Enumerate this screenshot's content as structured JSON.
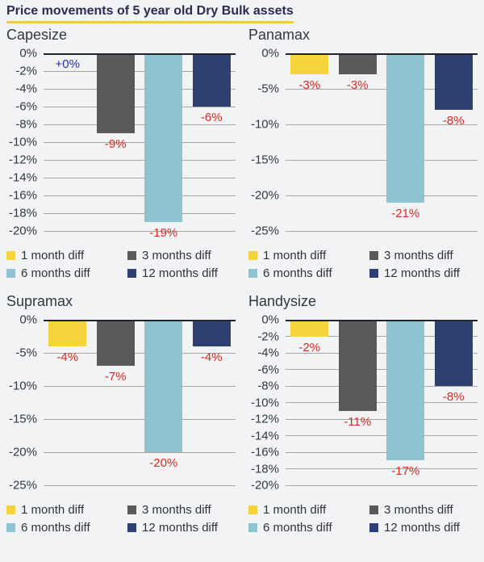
{
  "page": {
    "title": "Price movements of 5 year old Dry Bulk assets"
  },
  "series": [
    {
      "name": "1 month diff",
      "color": "#F5D33C"
    },
    {
      "name": "3 months diff",
      "color": "#595959"
    },
    {
      "name": "6 months diff",
      "color": "#8FC3D1"
    },
    {
      "name": "12 months diff",
      "color": "#2D4070"
    }
  ],
  "colors": {
    "background": "#F2F3F5",
    "title": "#282C55",
    "title_underline": "#F2C94C",
    "chart_title": "#33383F",
    "tick_label": "#33383F",
    "grid": "#A6A6A6",
    "zero_line": "#20242E",
    "negative_label": "#DE2A20",
    "positive_label": "#2B2BB8"
  },
  "chart_data": [
    {
      "type": "bar",
      "title": "Capesize",
      "categories": [
        "1 month diff",
        "3 months diff",
        "6 months diff",
        "12 months diff"
      ],
      "values": [
        0,
        -9,
        -19,
        -6
      ],
      "value_labels": [
        "+0%",
        "-9%",
        "-19%",
        "-6%"
      ],
      "ylim": [
        -20,
        0
      ],
      "yticks": [
        "0%",
        "-2%",
        "-4%",
        "-6%",
        "-8%",
        "-10%",
        "-12%",
        "-14%",
        "-16%",
        "-18%",
        "-20%"
      ],
      "grid": true,
      "legend_position": "bottom"
    },
    {
      "type": "bar",
      "title": "Panamax",
      "categories": [
        "1 month diff",
        "3 months diff",
        "6 months diff",
        "12 months diff"
      ],
      "values": [
        -3,
        -3,
        -21,
        -8
      ],
      "value_labels": [
        "-3%",
        "-3%",
        "-21%",
        "-8%"
      ],
      "ylim": [
        -25,
        0
      ],
      "yticks": [
        "0%",
        "-5%",
        "-10%",
        "-15%",
        "-20%",
        "-25%"
      ],
      "grid": true,
      "legend_position": "bottom"
    },
    {
      "type": "bar",
      "title": "Supramax",
      "categories": [
        "1 month diff",
        "3 months diff",
        "6 months diff",
        "12 months diff"
      ],
      "values": [
        -4,
        -7,
        -20,
        -4
      ],
      "value_labels": [
        "-4%",
        "-7%",
        "-20%",
        "-4%"
      ],
      "ylim": [
        -25,
        0
      ],
      "yticks": [
        "0%",
        "-5%",
        "-10%",
        "-15%",
        "-20%",
        "-25%"
      ],
      "grid": true,
      "legend_position": "bottom"
    },
    {
      "type": "bar",
      "title": "Handysize",
      "categories": [
        "1 month diff",
        "3 months diff",
        "6 months diff",
        "12 months diff"
      ],
      "values": [
        -2,
        -11,
        -17,
        -8
      ],
      "value_labels": [
        "-2%",
        "-11%",
        "-17%",
        "-8%"
      ],
      "ylim": [
        -20,
        0
      ],
      "yticks": [
        "0%",
        "-2%",
        "-4%",
        "-6%",
        "-8%",
        "-10%",
        "-12%",
        "-14%",
        "-16%",
        "-18%",
        "-20%"
      ],
      "grid": true,
      "legend_position": "bottom"
    }
  ]
}
